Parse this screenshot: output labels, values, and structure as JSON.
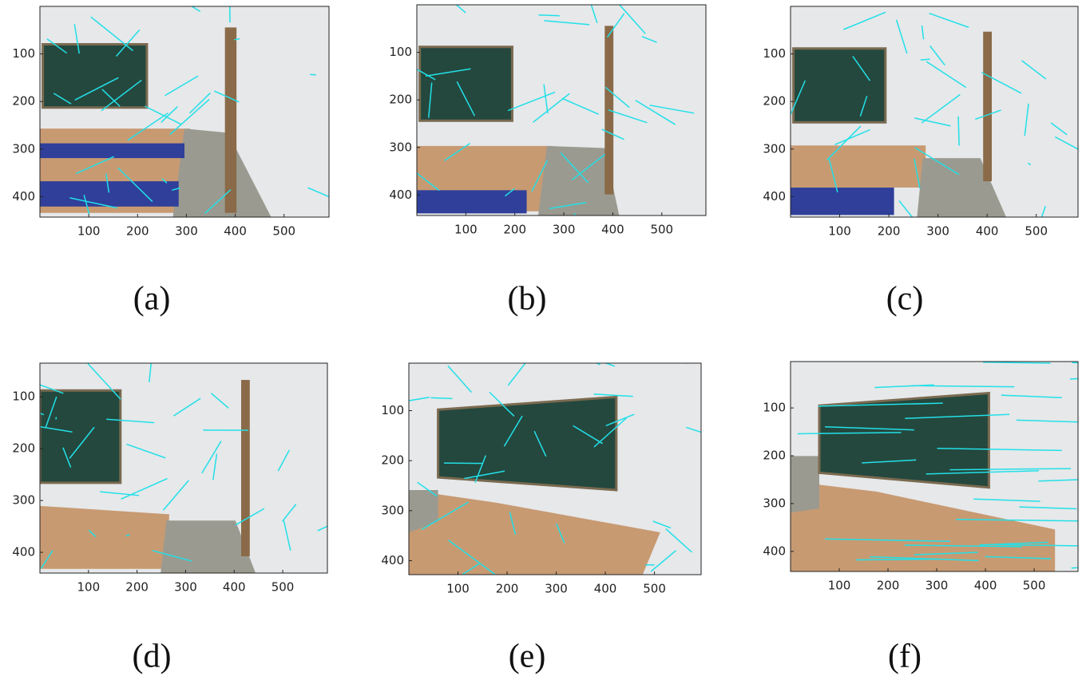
{
  "panels": [
    {
      "label": "(a)",
      "xlim": [
        0,
        592
      ],
      "ylim": [
        0,
        443
      ],
      "xticks": [
        100,
        200,
        300,
        400,
        500
      ],
      "yticks": [
        100,
        200,
        300,
        400
      ]
    },
    {
      "label": "(b)",
      "xlim": [
        0,
        590
      ],
      "ylim": [
        0,
        443
      ],
      "xticks": [
        100,
        200,
        300,
        400,
        500
      ],
      "yticks": [
        100,
        200,
        300,
        400
      ]
    },
    {
      "label": "(c)",
      "xlim": [
        0,
        585
      ],
      "ylim": [
        0,
        443
      ],
      "xticks": [
        100,
        200,
        300,
        400,
        500
      ],
      "yticks": [
        100,
        200,
        300,
        400
      ]
    },
    {
      "label": "(d)",
      "xlim": [
        0,
        592
      ],
      "ylim": [
        35,
        440
      ],
      "xticks": [
        100,
        200,
        300,
        400,
        500
      ],
      "yticks": [
        100,
        200,
        300,
        400
      ]
    },
    {
      "label": "(e)",
      "xlim": [
        0,
        595
      ],
      "ylim": [
        5,
        428
      ],
      "xticks": [
        100,
        200,
        300,
        400,
        500
      ],
      "yticks": [
        100,
        200,
        300,
        400
      ]
    },
    {
      "label": "(f)",
      "xlim": [
        0,
        590
      ],
      "ylim": [
        3,
        442
      ],
      "xticks": [
        100,
        200,
        300,
        400,
        500
      ],
      "yticks": [
        100,
        200,
        300,
        400
      ]
    }
  ]
}
